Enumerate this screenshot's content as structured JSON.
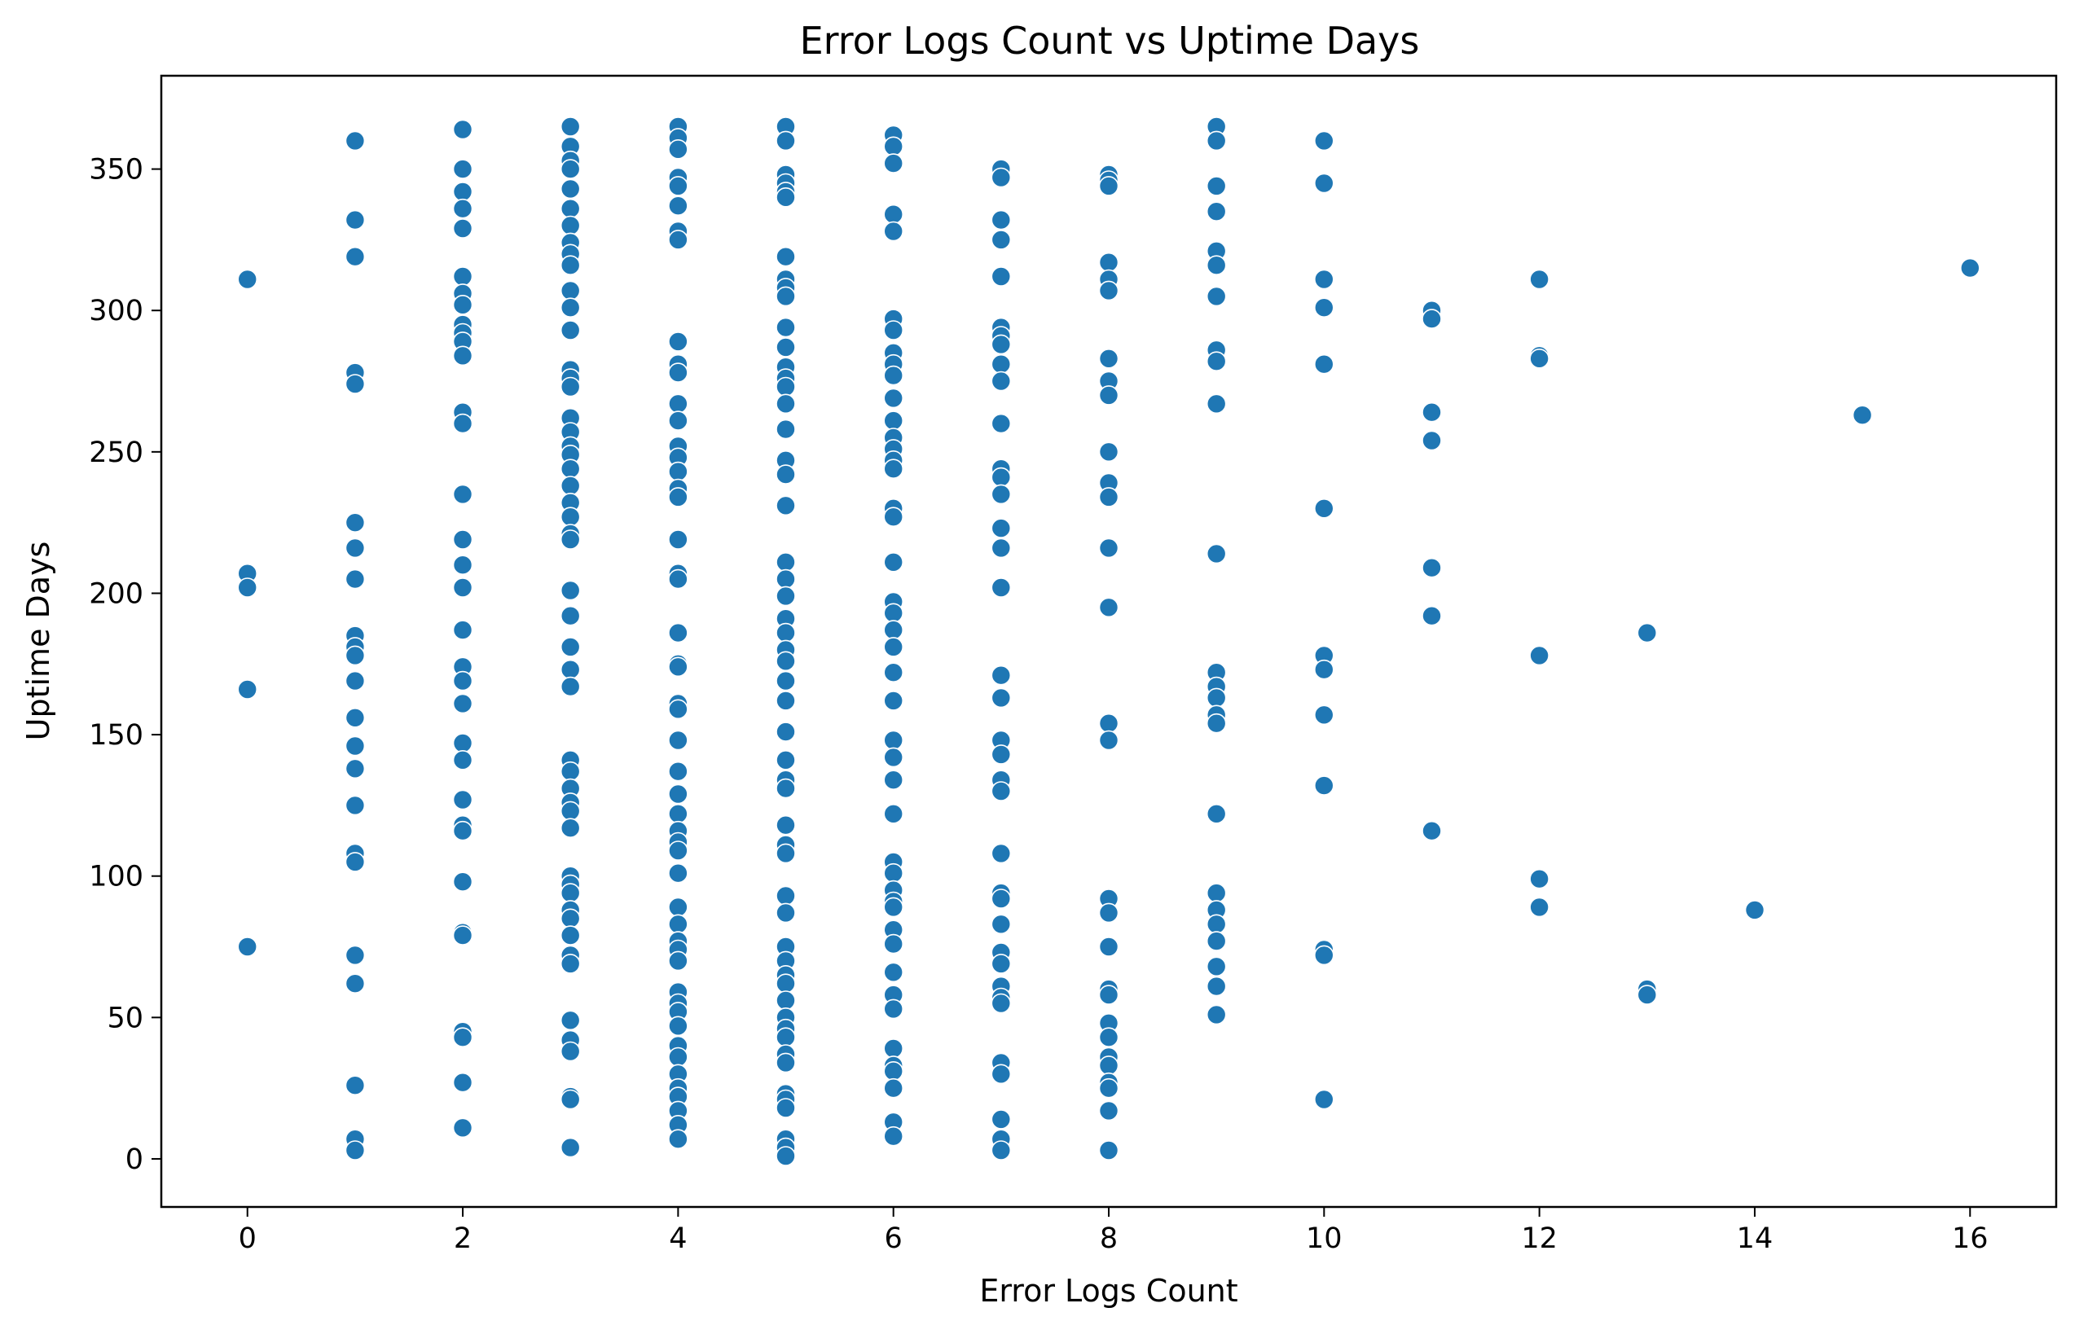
{
  "chart_data": {
    "type": "scatter",
    "title": "Error Logs Count vs Uptime Days",
    "xlabel": "Error Logs Count",
    "ylabel": "Uptime Days",
    "xlim": [
      -0.8,
      16.8
    ],
    "ylim": [
      -17,
      383
    ],
    "xticks": [
      0,
      2,
      4,
      6,
      8,
      10,
      12,
      14,
      16
    ],
    "yticks": [
      0,
      50,
      100,
      150,
      200,
      250,
      300,
      350
    ],
    "grid": false,
    "legend": false,
    "color": "#1f77b4",
    "points": [
      [
        0,
        311
      ],
      [
        0,
        207
      ],
      [
        0,
        202
      ],
      [
        0,
        166
      ],
      [
        0,
        75
      ],
      [
        1,
        360
      ],
      [
        1,
        332
      ],
      [
        1,
        319
      ],
      [
        1,
        278
      ],
      [
        1,
        274
      ],
      [
        1,
        225
      ],
      [
        1,
        216
      ],
      [
        1,
        205
      ],
      [
        1,
        185
      ],
      [
        1,
        181
      ],
      [
        1,
        178
      ],
      [
        1,
        169
      ],
      [
        1,
        156
      ],
      [
        1,
        146
      ],
      [
        1,
        138
      ],
      [
        1,
        125
      ],
      [
        1,
        108
      ],
      [
        1,
        105
      ],
      [
        1,
        72
      ],
      [
        1,
        62
      ],
      [
        1,
        26
      ],
      [
        1,
        7
      ],
      [
        1,
        3
      ],
      [
        2,
        364
      ],
      [
        2,
        350
      ],
      [
        2,
        342
      ],
      [
        2,
        336
      ],
      [
        2,
        329
      ],
      [
        2,
        312
      ],
      [
        2,
        306
      ],
      [
        2,
        302
      ],
      [
        2,
        295
      ],
      [
        2,
        292
      ],
      [
        2,
        289
      ],
      [
        2,
        284
      ],
      [
        2,
        264
      ],
      [
        2,
        260
      ],
      [
        2,
        235
      ],
      [
        2,
        219
      ],
      [
        2,
        210
      ],
      [
        2,
        202
      ],
      [
        2,
        187
      ],
      [
        2,
        174
      ],
      [
        2,
        169
      ],
      [
        2,
        161
      ],
      [
        2,
        147
      ],
      [
        2,
        141
      ],
      [
        2,
        127
      ],
      [
        2,
        118
      ],
      [
        2,
        116
      ],
      [
        2,
        98
      ],
      [
        2,
        80
      ],
      [
        2,
        79
      ],
      [
        2,
        45
      ],
      [
        2,
        43
      ],
      [
        2,
        27
      ],
      [
        2,
        11
      ],
      [
        3,
        365
      ],
      [
        3,
        358
      ],
      [
        3,
        353
      ],
      [
        3,
        350
      ],
      [
        3,
        343
      ],
      [
        3,
        336
      ],
      [
        3,
        330
      ],
      [
        3,
        324
      ],
      [
        3,
        320
      ],
      [
        3,
        316
      ],
      [
        3,
        307
      ],
      [
        3,
        301
      ],
      [
        3,
        293
      ],
      [
        3,
        279
      ],
      [
        3,
        276
      ],
      [
        3,
        273
      ],
      [
        3,
        262
      ],
      [
        3,
        257
      ],
      [
        3,
        252
      ],
      [
        3,
        249
      ],
      [
        3,
        244
      ],
      [
        3,
        238
      ],
      [
        3,
        232
      ],
      [
        3,
        227
      ],
      [
        3,
        221
      ],
      [
        3,
        219
      ],
      [
        3,
        201
      ],
      [
        3,
        192
      ],
      [
        3,
        181
      ],
      [
        3,
        173
      ],
      [
        3,
        167
      ],
      [
        3,
        141
      ],
      [
        3,
        137
      ],
      [
        3,
        131
      ],
      [
        3,
        126
      ],
      [
        3,
        123
      ],
      [
        3,
        117
      ],
      [
        3,
        100
      ],
      [
        3,
        97
      ],
      [
        3,
        94
      ],
      [
        3,
        88
      ],
      [
        3,
        85
      ],
      [
        3,
        79
      ],
      [
        3,
        72
      ],
      [
        3,
        69
      ],
      [
        3,
        49
      ],
      [
        3,
        42
      ],
      [
        3,
        38
      ],
      [
        3,
        22
      ],
      [
        3,
        21
      ],
      [
        3,
        4
      ],
      [
        4,
        365
      ],
      [
        4,
        361
      ],
      [
        4,
        357
      ],
      [
        4,
        347
      ],
      [
        4,
        344
      ],
      [
        4,
        337
      ],
      [
        4,
        328
      ],
      [
        4,
        325
      ],
      [
        4,
        289
      ],
      [
        4,
        281
      ],
      [
        4,
        278
      ],
      [
        4,
        267
      ],
      [
        4,
        261
      ],
      [
        4,
        252
      ],
      [
        4,
        248
      ],
      [
        4,
        243
      ],
      [
        4,
        237
      ],
      [
        4,
        234
      ],
      [
        4,
        219
      ],
      [
        4,
        207
      ],
      [
        4,
        205
      ],
      [
        4,
        186
      ],
      [
        4,
        175
      ],
      [
        4,
        174
      ],
      [
        4,
        161
      ],
      [
        4,
        159
      ],
      [
        4,
        148
      ],
      [
        4,
        137
      ],
      [
        4,
        129
      ],
      [
        4,
        122
      ],
      [
        4,
        116
      ],
      [
        4,
        112
      ],
      [
        4,
        109
      ],
      [
        4,
        101
      ],
      [
        4,
        89
      ],
      [
        4,
        83
      ],
      [
        4,
        77
      ],
      [
        4,
        74
      ],
      [
        4,
        70
      ],
      [
        4,
        59
      ],
      [
        4,
        55
      ],
      [
        4,
        52
      ],
      [
        4,
        47
      ],
      [
        4,
        40
      ],
      [
        4,
        36
      ],
      [
        4,
        30
      ],
      [
        4,
        25
      ],
      [
        4,
        22
      ],
      [
        4,
        17
      ],
      [
        4,
        12
      ],
      [
        4,
        7
      ],
      [
        5,
        365
      ],
      [
        5,
        360
      ],
      [
        5,
        348
      ],
      [
        5,
        345
      ],
      [
        5,
        342
      ],
      [
        5,
        340
      ],
      [
        5,
        319
      ],
      [
        5,
        311
      ],
      [
        5,
        308
      ],
      [
        5,
        305
      ],
      [
        5,
        294
      ],
      [
        5,
        287
      ],
      [
        5,
        280
      ],
      [
        5,
        276
      ],
      [
        5,
        273
      ],
      [
        5,
        267
      ],
      [
        5,
        258
      ],
      [
        5,
        247
      ],
      [
        5,
        242
      ],
      [
        5,
        231
      ],
      [
        5,
        211
      ],
      [
        5,
        205
      ],
      [
        5,
        199
      ],
      [
        5,
        191
      ],
      [
        5,
        186
      ],
      [
        5,
        180
      ],
      [
        5,
        176
      ],
      [
        5,
        169
      ],
      [
        5,
        162
      ],
      [
        5,
        151
      ],
      [
        5,
        141
      ],
      [
        5,
        134
      ],
      [
        5,
        131
      ],
      [
        5,
        118
      ],
      [
        5,
        111
      ],
      [
        5,
        108
      ],
      [
        5,
        93
      ],
      [
        5,
        87
      ],
      [
        5,
        75
      ],
      [
        5,
        70
      ],
      [
        5,
        65
      ],
      [
        5,
        62
      ],
      [
        5,
        56
      ],
      [
        5,
        50
      ],
      [
        5,
        46
      ],
      [
        5,
        43
      ],
      [
        5,
        37
      ],
      [
        5,
        34
      ],
      [
        5,
        23
      ],
      [
        5,
        21
      ],
      [
        5,
        18
      ],
      [
        5,
        7
      ],
      [
        5,
        4
      ],
      [
        5,
        1
      ],
      [
        6,
        362
      ],
      [
        6,
        358
      ],
      [
        6,
        352
      ],
      [
        6,
        334
      ],
      [
        6,
        328
      ],
      [
        6,
        297
      ],
      [
        6,
        293
      ],
      [
        6,
        285
      ],
      [
        6,
        281
      ],
      [
        6,
        277
      ],
      [
        6,
        269
      ],
      [
        6,
        261
      ],
      [
        6,
        255
      ],
      [
        6,
        251
      ],
      [
        6,
        247
      ],
      [
        6,
        244
      ],
      [
        6,
        230
      ],
      [
        6,
        227
      ],
      [
        6,
        211
      ],
      [
        6,
        197
      ],
      [
        6,
        193
      ],
      [
        6,
        187
      ],
      [
        6,
        181
      ],
      [
        6,
        172
      ],
      [
        6,
        162
      ],
      [
        6,
        148
      ],
      [
        6,
        142
      ],
      [
        6,
        134
      ],
      [
        6,
        122
      ],
      [
        6,
        105
      ],
      [
        6,
        101
      ],
      [
        6,
        95
      ],
      [
        6,
        91
      ],
      [
        6,
        89
      ],
      [
        6,
        81
      ],
      [
        6,
        76
      ],
      [
        6,
        66
      ],
      [
        6,
        58
      ],
      [
        6,
        53
      ],
      [
        6,
        39
      ],
      [
        6,
        33
      ],
      [
        6,
        31
      ],
      [
        6,
        25
      ],
      [
        6,
        13
      ],
      [
        6,
        8
      ],
      [
        7,
        350
      ],
      [
        7,
        347
      ],
      [
        7,
        332
      ],
      [
        7,
        325
      ],
      [
        7,
        312
      ],
      [
        7,
        294
      ],
      [
        7,
        291
      ],
      [
        7,
        288
      ],
      [
        7,
        281
      ],
      [
        7,
        275
      ],
      [
        7,
        260
      ],
      [
        7,
        244
      ],
      [
        7,
        241
      ],
      [
        7,
        235
      ],
      [
        7,
        223
      ],
      [
        7,
        216
      ],
      [
        7,
        202
      ],
      [
        7,
        171
      ],
      [
        7,
        163
      ],
      [
        7,
        148
      ],
      [
        7,
        143
      ],
      [
        7,
        134
      ],
      [
        7,
        130
      ],
      [
        7,
        108
      ],
      [
        7,
        94
      ],
      [
        7,
        92
      ],
      [
        7,
        83
      ],
      [
        7,
        73
      ],
      [
        7,
        69
      ],
      [
        7,
        61
      ],
      [
        7,
        57
      ],
      [
        7,
        55
      ],
      [
        7,
        34
      ],
      [
        7,
        30
      ],
      [
        7,
        14
      ],
      [
        7,
        7
      ],
      [
        7,
        3
      ],
      [
        8,
        348
      ],
      [
        8,
        346
      ],
      [
        8,
        344
      ],
      [
        8,
        317
      ],
      [
        8,
        311
      ],
      [
        8,
        307
      ],
      [
        8,
        283
      ],
      [
        8,
        275
      ],
      [
        8,
        270
      ],
      [
        8,
        250
      ],
      [
        8,
        239
      ],
      [
        8,
        234
      ],
      [
        8,
        216
      ],
      [
        8,
        195
      ],
      [
        8,
        154
      ],
      [
        8,
        148
      ],
      [
        8,
        92
      ],
      [
        8,
        87
      ],
      [
        8,
        75
      ],
      [
        8,
        60
      ],
      [
        8,
        58
      ],
      [
        8,
        48
      ],
      [
        8,
        43
      ],
      [
        8,
        36
      ],
      [
        8,
        33
      ],
      [
        8,
        27
      ],
      [
        8,
        25
      ],
      [
        8,
        17
      ],
      [
        8,
        3
      ],
      [
        9,
        365
      ],
      [
        9,
        360
      ],
      [
        9,
        344
      ],
      [
        9,
        335
      ],
      [
        9,
        321
      ],
      [
        9,
        316
      ],
      [
        9,
        305
      ],
      [
        9,
        286
      ],
      [
        9,
        282
      ],
      [
        9,
        267
      ],
      [
        9,
        214
      ],
      [
        9,
        172
      ],
      [
        9,
        167
      ],
      [
        9,
        163
      ],
      [
        9,
        157
      ],
      [
        9,
        154
      ],
      [
        9,
        122
      ],
      [
        9,
        94
      ],
      [
        9,
        88
      ],
      [
        9,
        83
      ],
      [
        9,
        77
      ],
      [
        9,
        68
      ],
      [
        9,
        61
      ],
      [
        9,
        51
      ],
      [
        10,
        360
      ],
      [
        10,
        345
      ],
      [
        10,
        311
      ],
      [
        10,
        301
      ],
      [
        10,
        281
      ],
      [
        10,
        230
      ],
      [
        10,
        178
      ],
      [
        10,
        173
      ],
      [
        10,
        157
      ],
      [
        10,
        132
      ],
      [
        10,
        74
      ],
      [
        10,
        72
      ],
      [
        10,
        21
      ],
      [
        11,
        300
      ],
      [
        11,
        297
      ],
      [
        11,
        264
      ],
      [
        11,
        254
      ],
      [
        11,
        209
      ],
      [
        11,
        192
      ],
      [
        11,
        116
      ],
      [
        12,
        311
      ],
      [
        12,
        284
      ],
      [
        12,
        283
      ],
      [
        12,
        178
      ],
      [
        12,
        99
      ],
      [
        12,
        89
      ],
      [
        13,
        186
      ],
      [
        13,
        60
      ],
      [
        13,
        58
      ],
      [
        14,
        88
      ],
      [
        15,
        263
      ],
      [
        16,
        315
      ]
    ]
  }
}
